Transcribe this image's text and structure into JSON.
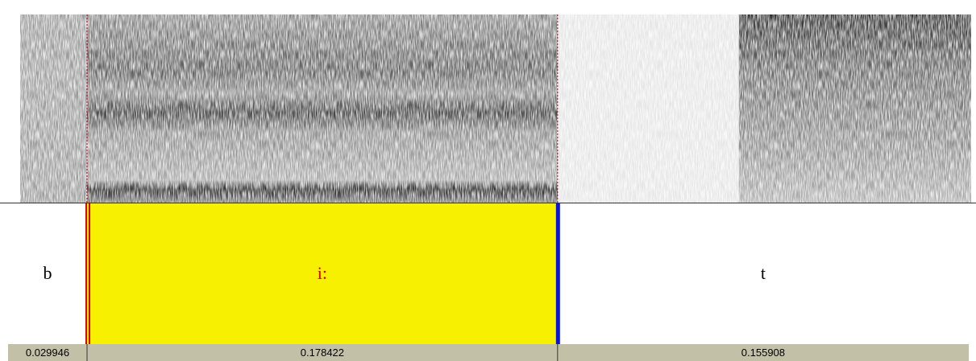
{
  "tier": {
    "intervals": [
      {
        "label": "b",
        "duration": 0.029946
      },
      {
        "label": "i:",
        "duration": 0.178422,
        "selected": true
      },
      {
        "label": "t",
        "duration": 0.155908
      }
    ]
  }
}
